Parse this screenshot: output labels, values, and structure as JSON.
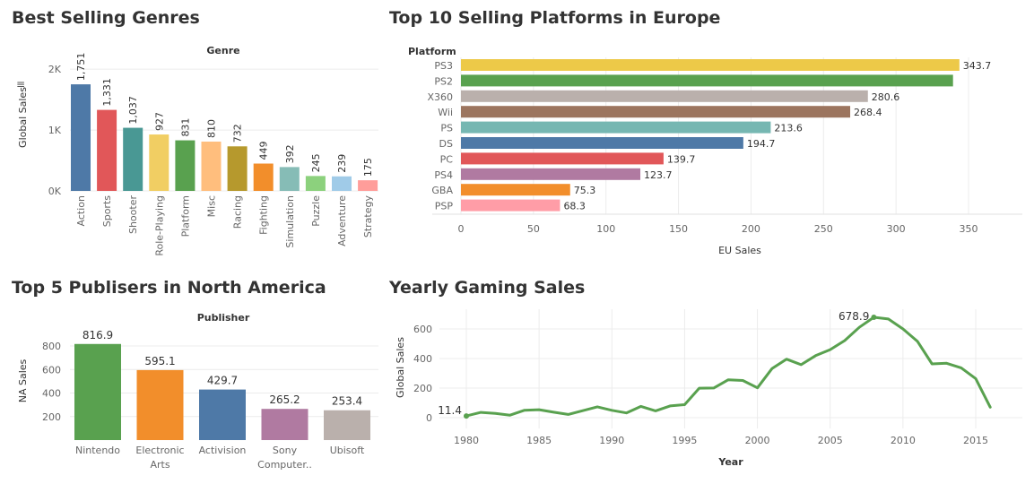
{
  "chart_data": [
    {
      "type": "bar",
      "title": "Best Selling Genres",
      "column_header": "Genre",
      "ylabel": "Global Sales",
      "ytick_labels": [
        "0K",
        "1K",
        "2K"
      ],
      "ylim": [
        0,
        2400
      ],
      "categories": [
        "Action",
        "Sports",
        "Shooter",
        "Role-Playing",
        "Platform",
        "Misc",
        "Racing",
        "Fighting",
        "Simulation",
        "Puzzle",
        "Adventure",
        "Strategy"
      ],
      "values": [
        1751,
        1331,
        1037,
        927,
        831,
        810,
        732,
        449,
        392,
        245,
        239,
        175
      ],
      "value_labels": [
        "1,751",
        "1,331",
        "1,037",
        "927",
        "831",
        "810",
        "732",
        "449",
        "392",
        "245",
        "239",
        "175"
      ],
      "colors": [
        "#4e79a7",
        "#e15759",
        "#499894",
        "#f1ce63",
        "#59a14f",
        "#ffbe7d",
        "#b6992d",
        "#f28e2b",
        "#86bcb6",
        "#8cd17d",
        "#a0cbe8",
        "#ff9d9a"
      ]
    },
    {
      "type": "bar",
      "orientation": "horizontal",
      "title": "Top 10 Selling Platforms in Europe",
      "row_header": "Platform",
      "xlabel": "EU Sales",
      "xticks": [
        0,
        50,
        100,
        150,
        200,
        250,
        300,
        350
      ],
      "xlim": [
        0,
        385
      ],
      "categories": [
        "PS3",
        "PS2",
        "X360",
        "Wii",
        "PS",
        "DS",
        "PC",
        "PS4",
        "GBA",
        "PSP"
      ],
      "values": [
        343.7,
        339.3,
        280.6,
        268.4,
        213.6,
        194.7,
        139.7,
        123.7,
        75.3,
        68.3
      ],
      "value_labels": [
        "343.7",
        "",
        "280.6",
        "268.4",
        "213.6",
        "194.7",
        "139.7",
        "123.7",
        "75.3",
        "68.3"
      ],
      "colors": [
        "#edc948",
        "#59a14f",
        "#bab0ac",
        "#9c755f",
        "#76b7b2",
        "#4e79a7",
        "#e15759",
        "#b07aa1",
        "#f28e2b",
        "#ff9da7"
      ]
    },
    {
      "type": "bar",
      "title": "Top 5 Publisers in North America",
      "column_header": "Publisher",
      "ylabel": "NA Sales",
      "yticks": [
        200,
        400,
        600,
        800
      ],
      "ylim": [
        0,
        900
      ],
      "categories": [
        [
          "Nintendo"
        ],
        [
          "Electronic",
          "Arts"
        ],
        [
          "Activision"
        ],
        [
          "Sony",
          "Computer.."
        ],
        [
          "Ubisoft"
        ]
      ],
      "values": [
        816.9,
        595.1,
        429.7,
        265.2,
        253.4
      ],
      "value_labels": [
        "816.9",
        "595.1",
        "429.7",
        "265.2",
        "253.4"
      ],
      "colors": [
        "#59a14f",
        "#f28e2b",
        "#4e79a7",
        "#b07aa1",
        "#bab0ac"
      ]
    },
    {
      "type": "line",
      "title": "Yearly Gaming Sales",
      "xlabel": "Year",
      "ylabel": "Global Sales",
      "xticks": [
        1980,
        1985,
        1990,
        1995,
        2000,
        2005,
        2010,
        2015
      ],
      "yticks": [
        0,
        200,
        400,
        600
      ],
      "xlim": [
        1979.5,
        2017.5
      ],
      "ylim": [
        -50,
        750
      ],
      "color": "#59a14f",
      "x": [
        1980,
        1981,
        1982,
        1983,
        1984,
        1985,
        1986,
        1987,
        1988,
        1989,
        1990,
        1991,
        1992,
        1993,
        1994,
        1995,
        1996,
        1997,
        1998,
        1999,
        2000,
        2001,
        2002,
        2003,
        2004,
        2005,
        2006,
        2007,
        2008,
        2009,
        2010,
        2011,
        2012,
        2013,
        2014,
        2015,
        2016
      ],
      "y": [
        11.4,
        35.8,
        28.9,
        16.8,
        50.4,
        53.9,
        37.1,
        21.7,
        47.2,
        73.5,
        49.4,
        32.2,
        76.2,
        45.9,
        79.2,
        88.1,
        199.2,
        200.9,
        256.5,
        251.3,
        201.6,
        331.5,
        395.5,
        357.9,
        419.3,
        459.9,
        521.0,
        611.1,
        678.9,
        667.3,
        600.3,
        515.8,
        363.5,
        368.1,
        337.1,
        264.4,
        70.9
      ],
      "annotations": [
        {
          "x": 1980,
          "y": 11.4,
          "label": "11.4"
        },
        {
          "x": 2008,
          "y": 678.9,
          "label": "678.9"
        }
      ]
    }
  ]
}
